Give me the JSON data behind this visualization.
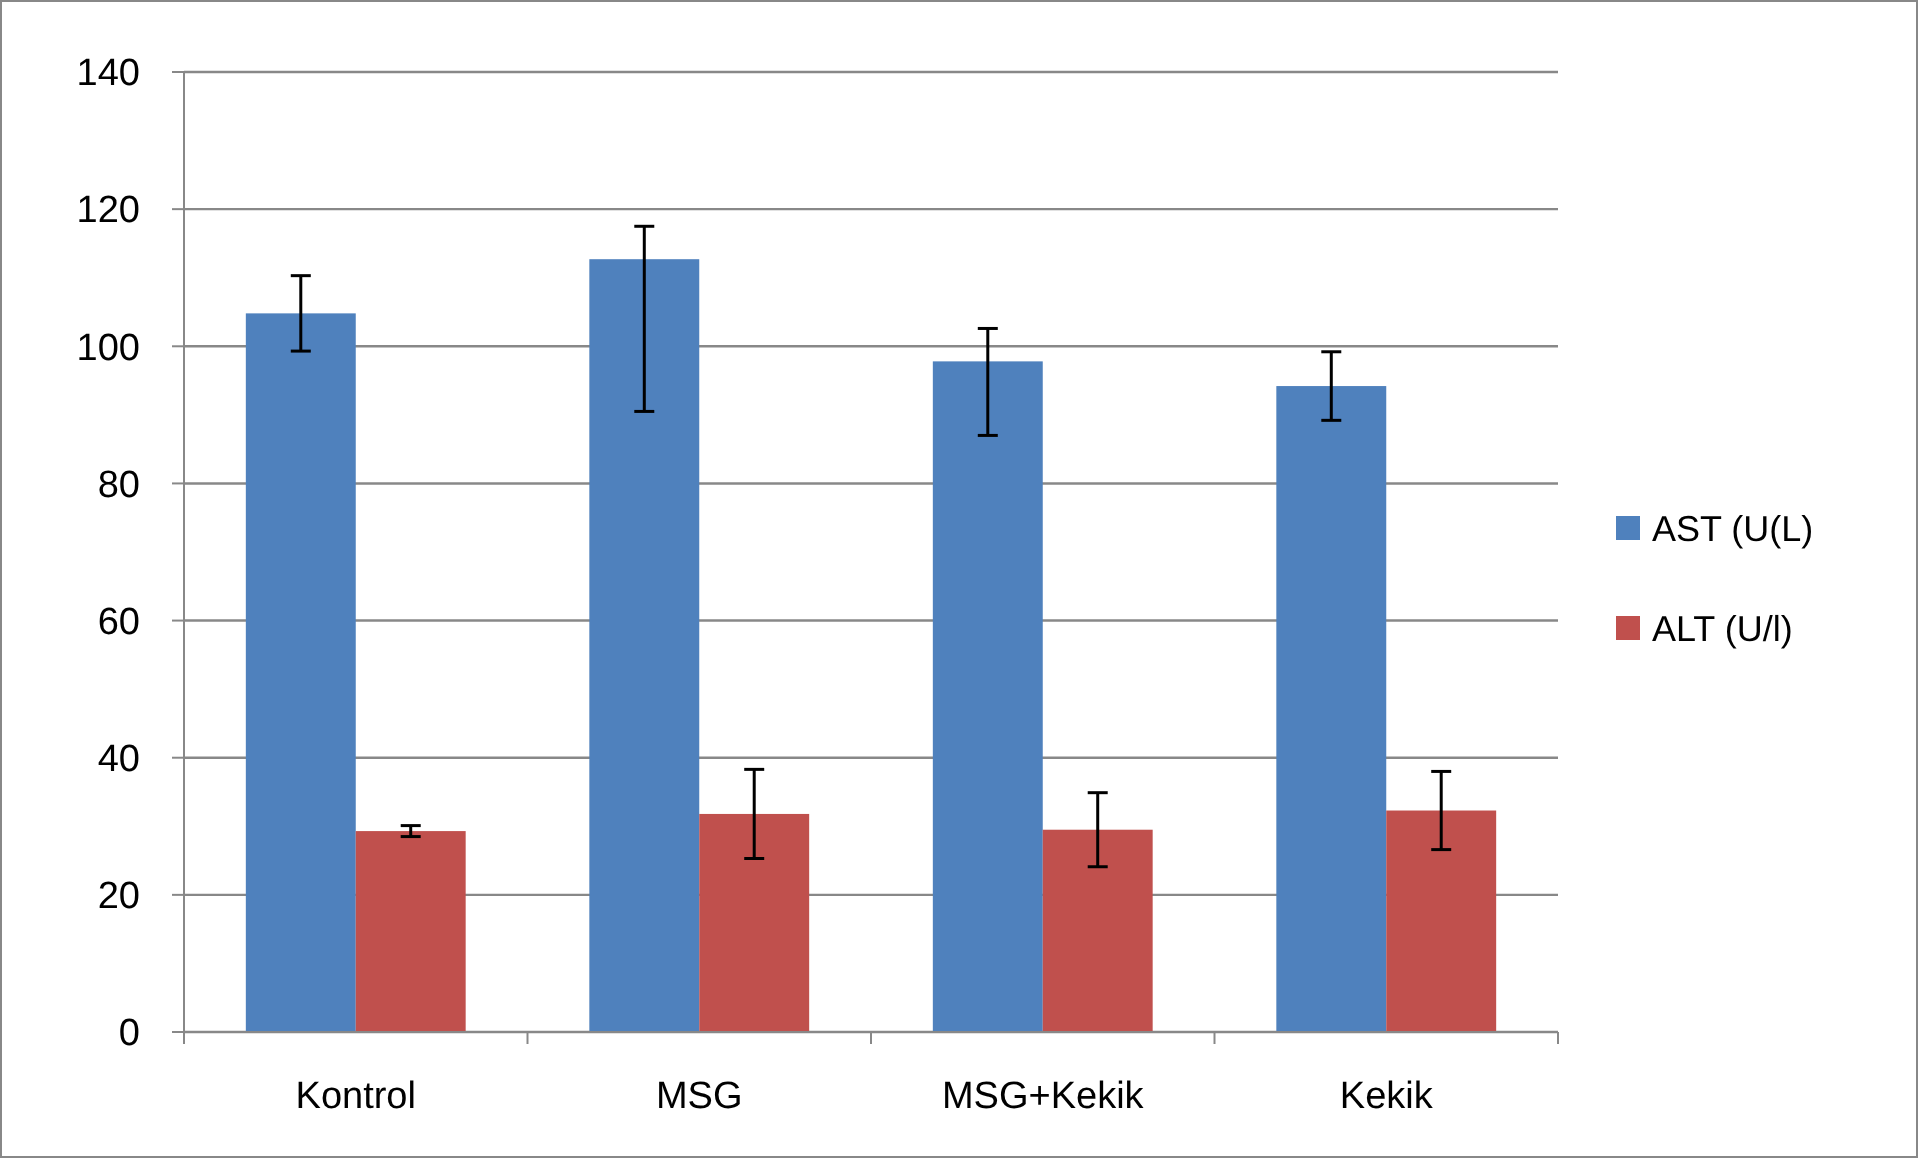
{
  "chart_data": {
    "type": "bar",
    "categories": [
      "Kontrol",
      "MSG",
      "MSG+Kekik",
      "Kekik"
    ],
    "series": [
      {
        "name": "AST (U(L)",
        "color": "#4f81bd",
        "values": [
          104.8,
          112.7,
          97.8,
          94.2
        ],
        "errors": [
          5.5,
          [
            90.5,
            117.5
          ],
          [
            87,
            102.6
          ],
          5
        ]
      },
      {
        "name": "ALT (U/l)",
        "color": "#c0504d",
        "values": [
          29.3,
          31.8,
          29.5,
          32.3
        ],
        "errors": [
          0.8,
          6.5,
          5.4,
          5.7
        ]
      }
    ],
    "ylim": [
      0,
      140
    ],
    "yticks": [
      0,
      20,
      40,
      60,
      80,
      100,
      120,
      140
    ],
    "grid": "y",
    "legend": "right"
  }
}
